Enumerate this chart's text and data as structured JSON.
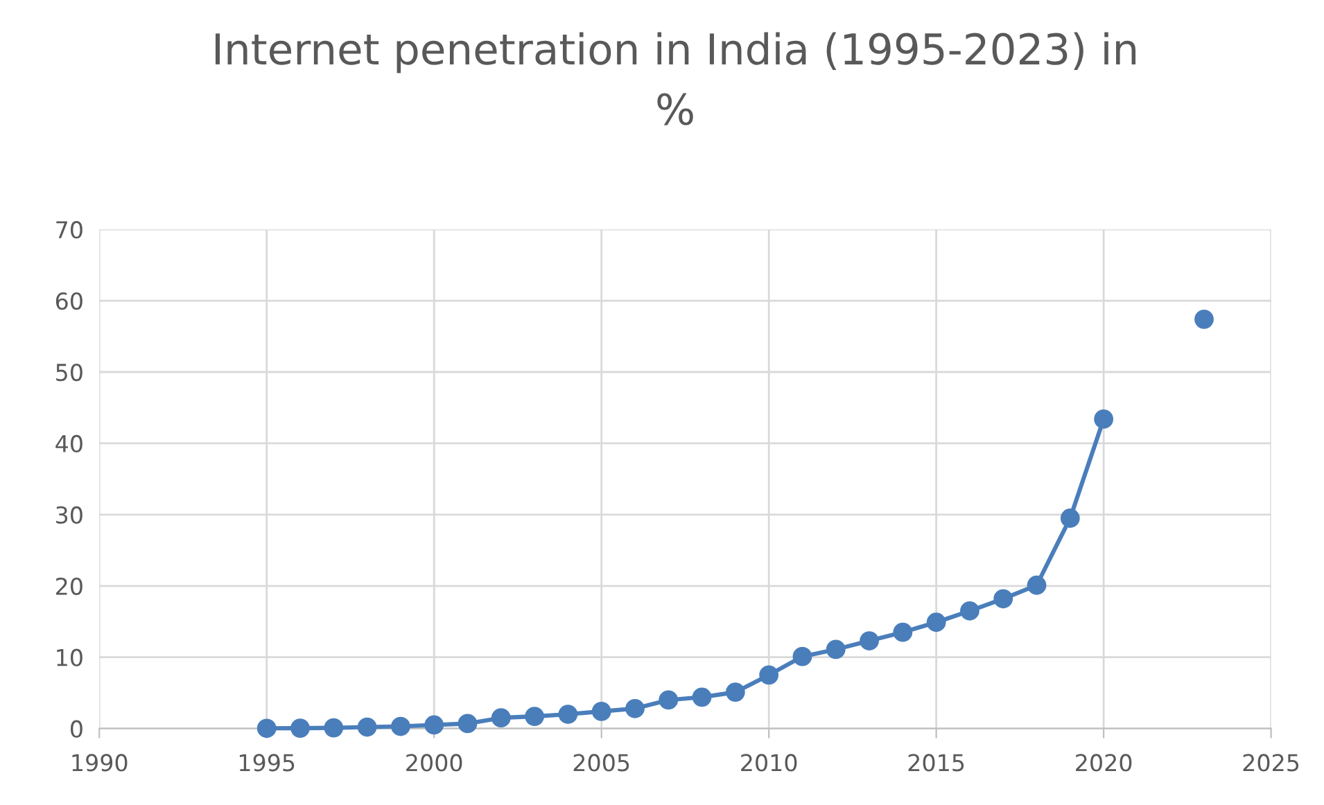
{
  "chart_data": {
    "type": "line",
    "title": "Internet penetration in India (1995-2023) in\n%",
    "x": [
      1995,
      1996,
      1997,
      1998,
      1999,
      2000,
      2001,
      2002,
      2003,
      2004,
      2005,
      2006,
      2007,
      2008,
      2009,
      2010,
      2011,
      2012,
      2013,
      2014,
      2015,
      2016,
      2017,
      2018,
      2019,
      2020,
      2021,
      2022,
      2023
    ],
    "series": [
      {
        "color": "#4a7ebb",
        "values": [
          0.03,
          0.05,
          0.1,
          0.2,
          0.3,
          0.5,
          0.7,
          1.5,
          1.7,
          2.0,
          2.4,
          2.8,
          4.0,
          4.4,
          5.1,
          7.5,
          10.1,
          11.1,
          12.3,
          13.5,
          14.9,
          16.5,
          18.2,
          20.1,
          29.5,
          43.4,
          null,
          null,
          57.4
        ]
      }
    ],
    "xlim": [
      1990,
      2025
    ],
    "xticks": [
      1990,
      1995,
      2000,
      2005,
      2010,
      2015,
      2020,
      2025
    ],
    "ylim": [
      0,
      70
    ],
    "yticks": [
      0,
      10,
      20,
      30,
      40,
      50,
      60,
      70
    ],
    "grid": true,
    "marker": "circle",
    "line_style": "solid"
  }
}
